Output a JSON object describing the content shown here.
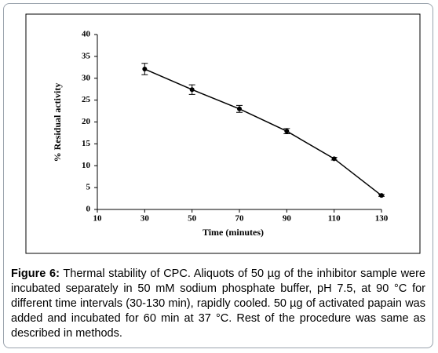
{
  "chart_data": {
    "type": "line",
    "x_label": "Time (minutes)",
    "y_label": "% Residual activity",
    "xlim": [
      10,
      130
    ],
    "xticks": [
      10,
      30,
      50,
      70,
      90,
      110,
      130
    ],
    "ylim": [
      0,
      40
    ],
    "yticks": [
      0,
      5,
      10,
      15,
      20,
      25,
      30,
      35,
      40
    ],
    "series": [
      {
        "color": "#000000",
        "x": [
          30,
          50,
          70,
          90,
          110,
          130
        ],
        "values": [
          32.1,
          27.4,
          23.0,
          17.9,
          11.6,
          3.2
        ],
        "errors": [
          1.3,
          1.1,
          0.8,
          0.6,
          0.3,
          0.2
        ]
      }
    ]
  },
  "caption": {
    "label": "Figure 6:",
    "text": "Thermal stability of CPC. Aliquots of 50 µg of the inhibitor sample were incubated separately in 50 mM sodium phosphate buffer, pH 7.5, at 90 °C for different time intervals (30-130 min), rapidly cooled. 50 µg of activated papain was added and incubated for 60 min at 37 °C. Rest of the procedure was same as described in methods."
  }
}
